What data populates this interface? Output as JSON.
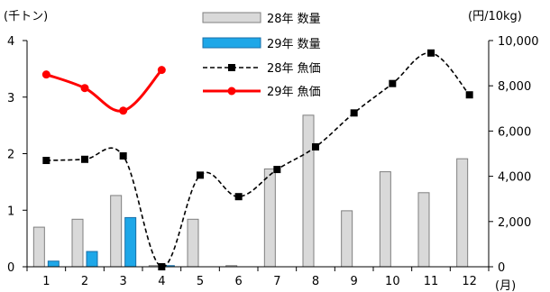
{
  "chart_data": {
    "type": "bar+line",
    "categories": [
      "1",
      "2",
      "3",
      "4",
      "5",
      "6",
      "7",
      "8",
      "9",
      "10",
      "11",
      "12"
    ],
    "left_axis": {
      "unit_label": "(千トン)",
      "ticks": [
        "0",
        "1",
        "2",
        "3",
        "4"
      ],
      "ylim": [
        0,
        4
      ]
    },
    "right_axis": {
      "unit_label": "(円/10kg)",
      "ticks": [
        "0",
        "2,000",
        "4,000",
        "6,000",
        "8,000",
        "10,000"
      ],
      "ylim": [
        0,
        10000
      ]
    },
    "x_unit_label": "(月)",
    "series": [
      {
        "name": "28年 数量",
        "kind": "bar",
        "axis": "left",
        "color": "#d9d9d9",
        "stroke": "#7f7f7f",
        "values": [
          0.7,
          0.84,
          1.26,
          0.02,
          0.84,
          0.02,
          1.73,
          2.68,
          0.99,
          1.68,
          1.31,
          1.91
        ]
      },
      {
        "name": "29年 数量",
        "kind": "bar",
        "axis": "left",
        "color": "#1ea7e8",
        "stroke": "#1a6fa8",
        "values": [
          0.1,
          0.27,
          0.87,
          0.02,
          null,
          null,
          null,
          null,
          null,
          null,
          null,
          null
        ]
      },
      {
        "name": "28年 魚価",
        "kind": "line",
        "axis": "right",
        "color": "#000000",
        "style": "dashed",
        "marker": "square",
        "values": [
          4700,
          4750,
          4900,
          0,
          4050,
          3100,
          4300,
          5300,
          6800,
          8100,
          9450,
          7600
        ]
      },
      {
        "name": "29年 魚価",
        "kind": "line",
        "axis": "right",
        "color": "#ff0000",
        "style": "solid",
        "marker": "circle",
        "values": [
          8500,
          7900,
          6900,
          8700,
          null,
          null,
          null,
          null,
          null,
          null,
          null,
          null
        ]
      }
    ],
    "legend_position": "top-center",
    "grid": false
  }
}
